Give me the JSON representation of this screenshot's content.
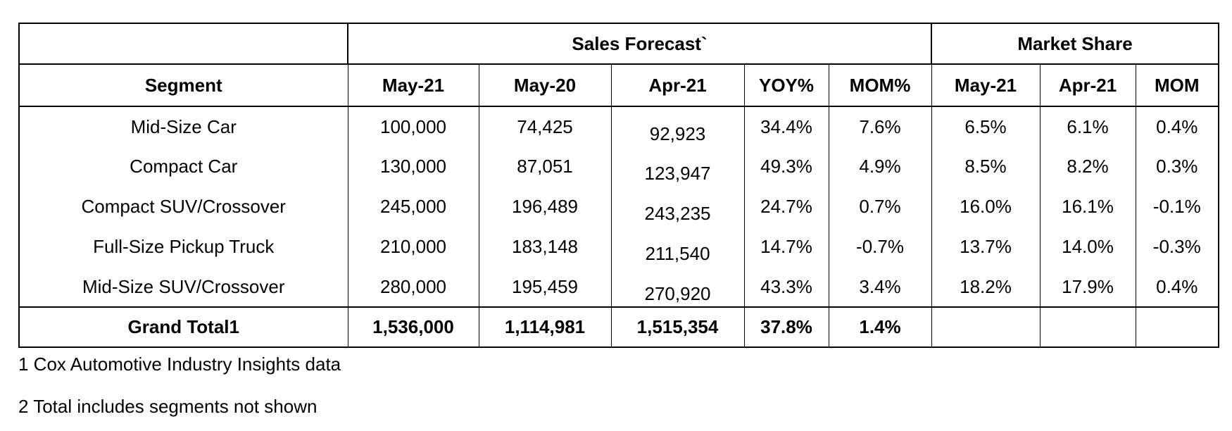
{
  "chart_data": {
    "type": "table",
    "groups": {
      "sales_forecast": "Sales Forecast`",
      "market_share": "Market Share"
    },
    "columns": [
      "Segment",
      "May-21",
      "May-20",
      "Apr-21",
      "YOY%",
      "MOM%",
      "May-21",
      "Apr-21",
      "MOM"
    ],
    "rows": [
      [
        "Mid-Size Car",
        "100,000",
        "74,425",
        "92,923",
        "34.4%",
        "7.6%",
        "6.5%",
        "6.1%",
        "0.4%"
      ],
      [
        "Compact Car",
        "130,000",
        "87,051",
        "123,947",
        "49.3%",
        "4.9%",
        "8.5%",
        "8.2%",
        "0.3%"
      ],
      [
        "Compact SUV/Crossover",
        "245,000",
        "196,489",
        "243,235",
        "24.7%",
        "0.7%",
        "16.0%",
        "16.1%",
        "-0.1%"
      ],
      [
        "Full-Size Pickup Truck",
        "210,000",
        "183,148",
        "211,540",
        "14.7%",
        "-0.7%",
        "13.7%",
        "14.0%",
        "-0.3%"
      ],
      [
        "Mid-Size SUV/Crossover",
        "280,000",
        "195,459",
        "270,920",
        "43.3%",
        "3.4%",
        "18.2%",
        "17.9%",
        "0.4%"
      ]
    ],
    "total_row": [
      "Grand Total1",
      "1,536,000",
      "1,114,981",
      "1,515,354",
      "37.8%",
      "1.4%",
      "",
      "",
      ""
    ]
  },
  "footnotes": [
    "1 Cox Automotive Industry Insights data",
    "2 Total includes segments not shown"
  ]
}
